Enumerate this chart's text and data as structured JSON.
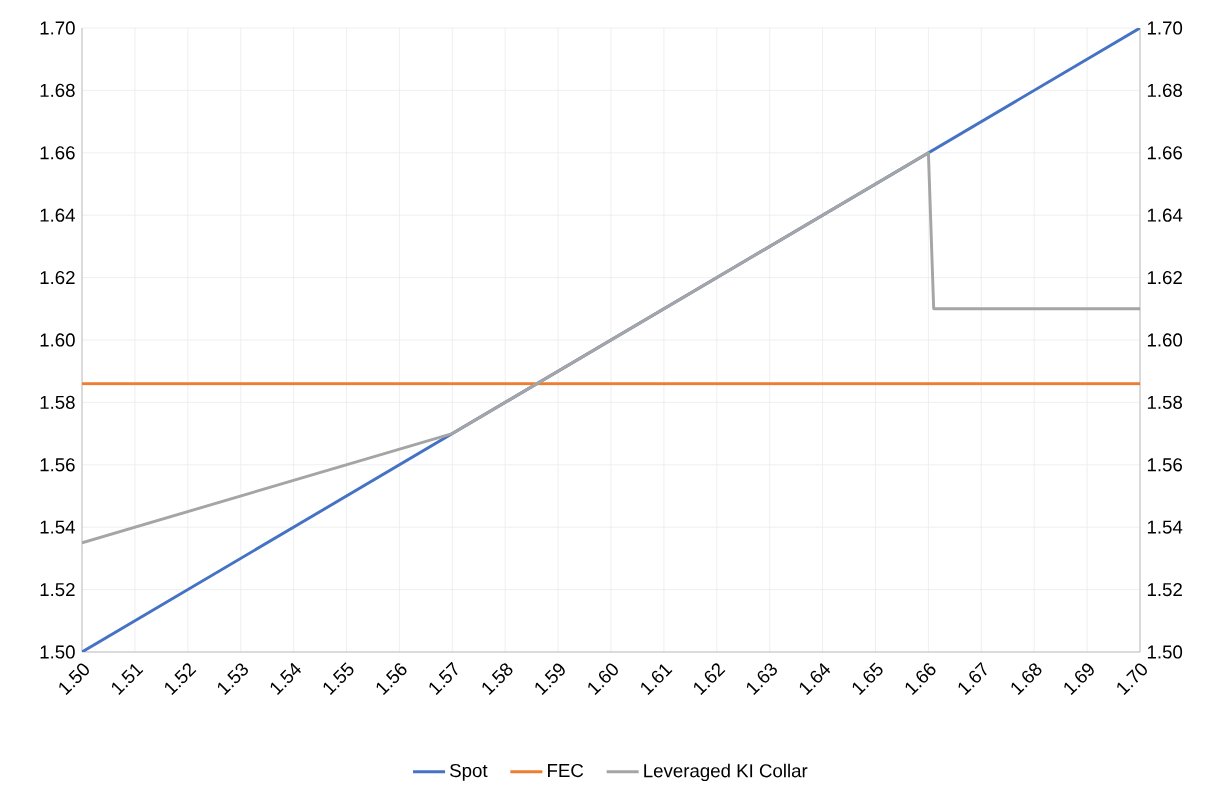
{
  "chart_data": {
    "type": "line",
    "series": [
      {
        "name": "Spot",
        "color": "#4472c4",
        "x": [
          1.5,
          1.7
        ],
        "values": [
          1.5,
          1.7
        ]
      },
      {
        "name": "FEC",
        "color": "#ed7d31",
        "x": [
          1.5,
          1.7
        ],
        "values": [
          1.586,
          1.586
        ]
      },
      {
        "name": "Leveraged KI Collar",
        "color": "#a5a5a5",
        "x": [
          1.5,
          1.57,
          1.66,
          1.661,
          1.7
        ],
        "values": [
          1.535,
          1.57,
          1.66,
          1.61,
          1.61
        ]
      }
    ],
    "xlim": [
      1.5,
      1.7
    ],
    "ylim": [
      1.5,
      1.7
    ],
    "y2lim": [
      1.5,
      1.7
    ],
    "xticks": [
      {
        "value": 1.5,
        "label": "1.50"
      },
      {
        "value": 1.51,
        "label": "1.51"
      },
      {
        "value": 1.52,
        "label": "1.52"
      },
      {
        "value": 1.53,
        "label": "1.53"
      },
      {
        "value": 1.54,
        "label": "1.54"
      },
      {
        "value": 1.55,
        "label": "1.55"
      },
      {
        "value": 1.56,
        "label": "1.56"
      },
      {
        "value": 1.57,
        "label": "1.57"
      },
      {
        "value": 1.58,
        "label": "1.58"
      },
      {
        "value": 1.59,
        "label": "1.59"
      },
      {
        "value": 1.6,
        "label": "1.60"
      },
      {
        "value": 1.61,
        "label": "1.61"
      },
      {
        "value": 1.62,
        "label": "1.62"
      },
      {
        "value": 1.63,
        "label": "1.63"
      },
      {
        "value": 1.64,
        "label": "1.64"
      },
      {
        "value": 1.65,
        "label": "1.65"
      },
      {
        "value": 1.66,
        "label": "1.66"
      },
      {
        "value": 1.67,
        "label": "1.67"
      },
      {
        "value": 1.68,
        "label": "1.68"
      },
      {
        "value": 1.69,
        "label": "1.69"
      },
      {
        "value": 1.7,
        "label": "1.70"
      }
    ],
    "yticks": [
      {
        "value": 1.5,
        "label": "1.50"
      },
      {
        "value": 1.52,
        "label": "1.52"
      },
      {
        "value": 1.54,
        "label": "1.54"
      },
      {
        "value": 1.56,
        "label": "1.56"
      },
      {
        "value": 1.58,
        "label": "1.58"
      },
      {
        "value": 1.6,
        "label": "1.60"
      },
      {
        "value": 1.62,
        "label": "1.62"
      },
      {
        "value": 1.64,
        "label": "1.64"
      },
      {
        "value": 1.66,
        "label": "1.66"
      },
      {
        "value": 1.68,
        "label": "1.68"
      },
      {
        "value": 1.7,
        "label": "1.70"
      }
    ],
    "y2ticks": [
      {
        "value": 1.5,
        "label": "1.50"
      },
      {
        "value": 1.52,
        "label": "1.52"
      },
      {
        "value": 1.54,
        "label": "1.54"
      },
      {
        "value": 1.56,
        "label": "1.56"
      },
      {
        "value": 1.58,
        "label": "1.58"
      },
      {
        "value": 1.6,
        "label": "1.60"
      },
      {
        "value": 1.62,
        "label": "1.62"
      },
      {
        "value": 1.64,
        "label": "1.64"
      },
      {
        "value": 1.66,
        "label": "1.66"
      },
      {
        "value": 1.68,
        "label": "1.68"
      },
      {
        "value": 1.7,
        "label": "1.70"
      }
    ],
    "grid": true,
    "legend": "bottom"
  }
}
